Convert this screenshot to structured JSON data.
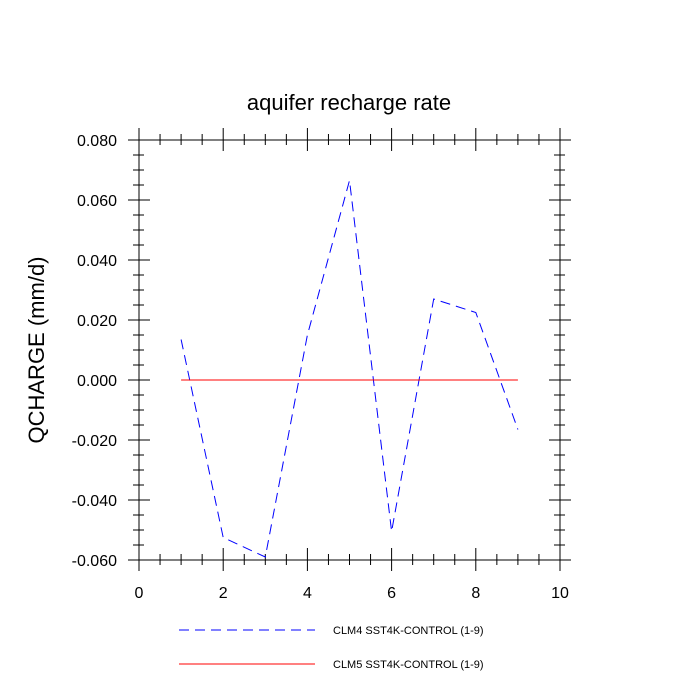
{
  "chart_data": {
    "type": "line",
    "title": "aquifer recharge rate",
    "xlabel": "",
    "ylabel": "QCHARGE  (mm/d)",
    "xlim": [
      0,
      10
    ],
    "ylim": [
      -0.06,
      0.08
    ],
    "x_ticks": [
      0,
      2,
      4,
      6,
      8,
      10
    ],
    "x_tick_labels": [
      "0",
      "2",
      "4",
      "6",
      "8",
      "10"
    ],
    "y_ticks": [
      -0.06,
      -0.04,
      -0.02,
      0.0,
      0.02,
      0.04,
      0.06,
      0.08
    ],
    "y_tick_labels": [
      "-0.060",
      "-0.040",
      "-0.020",
      "0.000",
      "0.020",
      "0.040",
      "0.060",
      "0.080"
    ],
    "x": [
      1,
      2,
      3,
      4,
      5,
      6,
      7,
      8,
      9
    ],
    "grid": false,
    "legend_position": "bottom",
    "series": [
      {
        "name": "CLM4 SST4K-CONTROL (1-9)",
        "color": "#0000ff",
        "dash": "dashed",
        "values": [
          0.0135,
          -0.0525,
          -0.059,
          0.015,
          0.0665,
          -0.0505,
          0.027,
          0.0225,
          -0.0165
        ]
      },
      {
        "name": "CLM5 SST4K-CONTROL (1-9)",
        "color": "#ff0000",
        "dash": "solid",
        "values": [
          0,
          0,
          0,
          0,
          0,
          0,
          0,
          0,
          0
        ]
      }
    ]
  }
}
